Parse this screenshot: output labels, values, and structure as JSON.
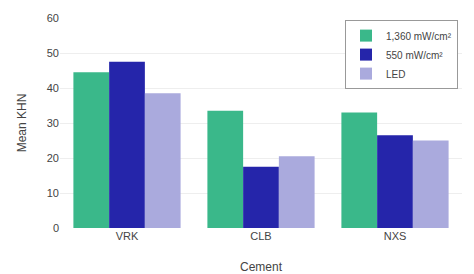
{
  "chart_data": {
    "type": "bar",
    "categories": [
      "VRK",
      "CLB",
      "NXS"
    ],
    "series": [
      {
        "name": "1,360 mW/cm²",
        "color": "#3ab88a",
        "values": [
          44.5,
          33.5,
          33.0
        ]
      },
      {
        "name": "550 mW/cm²",
        "color": "#2525aa",
        "values": [
          47.5,
          17.5,
          26.5
        ]
      },
      {
        "name": "LED",
        "color": "#aaaadd",
        "values": [
          38.5,
          20.5,
          25.0
        ]
      }
    ],
    "xlabel": "Cement",
    "ylabel": "Mean KHN",
    "ylim": [
      0,
      60
    ],
    "yticks": [
      0,
      10,
      20,
      30,
      40,
      50,
      60
    ],
    "grid": true,
    "legend": "upper right"
  }
}
